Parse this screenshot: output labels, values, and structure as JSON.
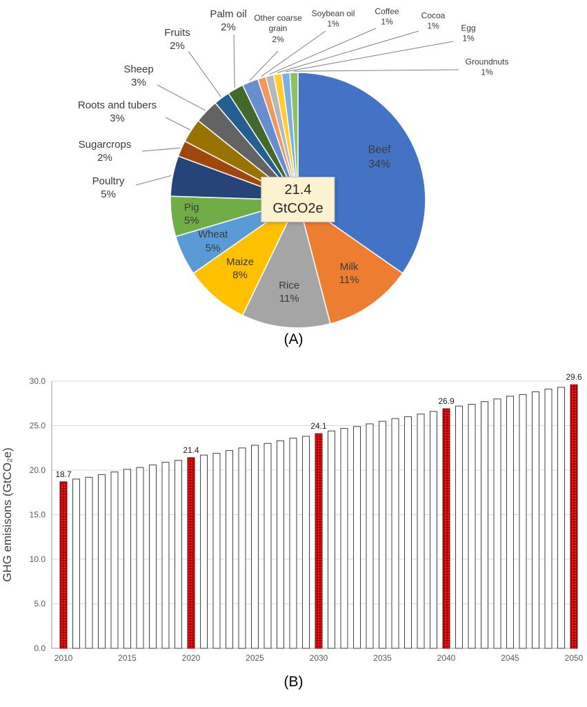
{
  "page": {
    "background": "#FFFFFF"
  },
  "chart_data": [
    {
      "id": "food-ghg-pie",
      "type": "pie",
      "caption": "(A)",
      "center_label": {
        "line1": "21.4",
        "line2": "GtCO2e"
      },
      "segments": [
        {
          "label": "Beef",
          "pct": 34,
          "pct_label": "34%",
          "color": "#4472C4"
        },
        {
          "label": "Milk",
          "pct": 11,
          "pct_label": "11%",
          "color": "#ED7D31"
        },
        {
          "label": "Rice",
          "pct": 11,
          "pct_label": "11%",
          "color": "#A5A5A5"
        },
        {
          "label": "Maize",
          "pct": 8,
          "pct_label": "8%",
          "color": "#FFC000"
        },
        {
          "label": "Wheat",
          "pct": 5,
          "pct_label": "5%",
          "color": "#5B9BD5"
        },
        {
          "label": "Pig",
          "pct": 5,
          "pct_label": "5%",
          "color": "#70AD47"
        },
        {
          "label": "Poultry",
          "pct": 5,
          "pct_label": "5%",
          "color": "#264478"
        },
        {
          "label": "Sugarcrops",
          "pct": 2,
          "pct_label": "2%",
          "color": "#9E480E"
        },
        {
          "label": "Roots and tubers",
          "pct": 3,
          "pct_label": "3%",
          "color": "#997300"
        },
        {
          "label": "Sheep",
          "pct": 3,
          "pct_label": "3%",
          "color": "#636363"
        },
        {
          "label": "Fruits",
          "pct": 2,
          "pct_label": "2%",
          "color": "#255E91"
        },
        {
          "label": "Palm oil",
          "pct": 2,
          "pct_label": "2%",
          "color": "#43682B"
        },
        {
          "label": "Other coarse grain",
          "pct": 2,
          "pct_label": "2%",
          "color": "#698ED0"
        },
        {
          "label": "Soybean oil",
          "pct": 1,
          "pct_label": "1%",
          "color": "#F1975A"
        },
        {
          "label": "Coffee",
          "pct": 1,
          "pct_label": "1%",
          "color": "#B7B7B7"
        },
        {
          "label": "Cocoa",
          "pct": 1,
          "pct_label": "1%",
          "color": "#FFCD33"
        },
        {
          "label": "Egg",
          "pct": 1,
          "pct_label": "1%",
          "color": "#7CAFDD"
        },
        {
          "label": "Groundnuts",
          "pct": 1,
          "pct_label": "1%",
          "color": "#8CC168"
        }
      ]
    },
    {
      "id": "ghg-projection-bars",
      "type": "bar",
      "caption": "(B)",
      "ylabel": "GHG emisisons (GtCO₂e)",
      "ylim": [
        0,
        30
      ],
      "yticks": [
        "0.0",
        "5.0",
        "10.0",
        "15.0",
        "20.0",
        "25.0",
        "30.0"
      ],
      "xticks": [
        "2010",
        "2015",
        "2020",
        "2025",
        "2030",
        "2035",
        "2040",
        "2045",
        "2050"
      ],
      "x": [
        2010,
        2011,
        2012,
        2013,
        2014,
        2015,
        2016,
        2017,
        2018,
        2019,
        2020,
        2021,
        2022,
        2023,
        2024,
        2025,
        2026,
        2027,
        2028,
        2029,
        2030,
        2031,
        2032,
        2033,
        2034,
        2035,
        2036,
        2037,
        2038,
        2039,
        2040,
        2041,
        2042,
        2043,
        2044,
        2045,
        2046,
        2047,
        2048,
        2049,
        2050
      ],
      "values": [
        18.7,
        19.0,
        19.2,
        19.5,
        19.8,
        20.1,
        20.3,
        20.6,
        20.9,
        21.1,
        21.4,
        21.7,
        21.9,
        22.2,
        22.5,
        22.8,
        23.0,
        23.3,
        23.6,
        23.8,
        24.1,
        24.4,
        24.7,
        24.9,
        25.2,
        25.5,
        25.8,
        26.0,
        26.3,
        26.6,
        26.9,
        27.2,
        27.4,
        27.7,
        28.0,
        28.3,
        28.5,
        28.8,
        29.1,
        29.3,
        29.6
      ],
      "highlights": [
        {
          "year": 2010,
          "label": "18.7"
        },
        {
          "year": 2020,
          "label": "21.4"
        },
        {
          "year": 2030,
          "label": "24.1"
        },
        {
          "year": 2040,
          "label": "26.9"
        },
        {
          "year": 2050,
          "label": "29.6"
        }
      ],
      "colors": {
        "bar_fill": "#FFFFFF",
        "bar_stroke": "#404040",
        "highlight_fill": "#C00000",
        "highlight_stroke": "#7B0A0A",
        "grid": "#D9D9D9",
        "axis": "#9A9A9A"
      }
    }
  ]
}
